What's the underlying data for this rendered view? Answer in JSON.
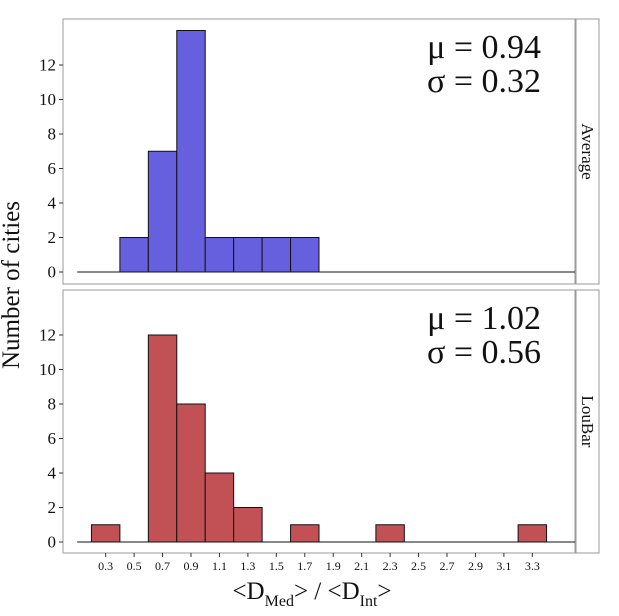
{
  "chart_data": {
    "type": "bar",
    "ylabel": "Number of cities",
    "xlabel": {
      "open_bracket": "<D",
      "num_sub": "Med",
      "middle": "> / <D",
      "den_sub": "Int",
      "close_bracket": ">"
    },
    "x_ticks": [
      "0.3",
      "0.5",
      "0.7",
      "0.9",
      "1.1",
      "1.3",
      "1.5",
      "1.7",
      "1.9",
      "2.1",
      "2.3",
      "2.5",
      "2.7",
      "2.9",
      "3.1",
      "3.3"
    ],
    "x_tick_values": [
      0.3,
      0.5,
      0.7,
      0.9,
      1.1,
      1.3,
      1.5,
      1.7,
      1.9,
      2.1,
      2.3,
      2.5,
      2.7,
      2.9,
      3.1,
      3.3
    ],
    "xlim": [
      0.0,
      3.6
    ],
    "bin_width": 0.2,
    "baseline_range": [
      0.1,
      3.6
    ],
    "grid": false,
    "panels": [
      {
        "strip_label": "Average",
        "color": "#6760de",
        "ylim": [
          0,
          14
        ],
        "yticks": [
          0,
          2,
          4,
          6,
          8,
          10,
          12
        ],
        "stat_mu": "μ = 0.94",
        "stat_sigma": "σ = 0.32",
        "bin_starts": [
          0.4,
          0.6,
          0.8,
          1.0,
          1.2,
          1.4,
          1.6
        ],
        "values": [
          2,
          7,
          14,
          2,
          2,
          2,
          2
        ]
      },
      {
        "strip_label": "LouBar",
        "color": "#c25155",
        "ylim": [
          0,
          12.5
        ],
        "yticks": [
          0,
          2,
          4,
          6,
          8,
          10,
          12
        ],
        "stat_mu": "μ = 1.02",
        "stat_sigma": "σ = 0.56",
        "bin_starts": [
          0.2,
          0.6,
          0.8,
          1.0,
          1.2,
          1.6,
          2.2,
          3.2
        ],
        "values": [
          1,
          12,
          8,
          4,
          2,
          1,
          1,
          1
        ]
      }
    ]
  }
}
